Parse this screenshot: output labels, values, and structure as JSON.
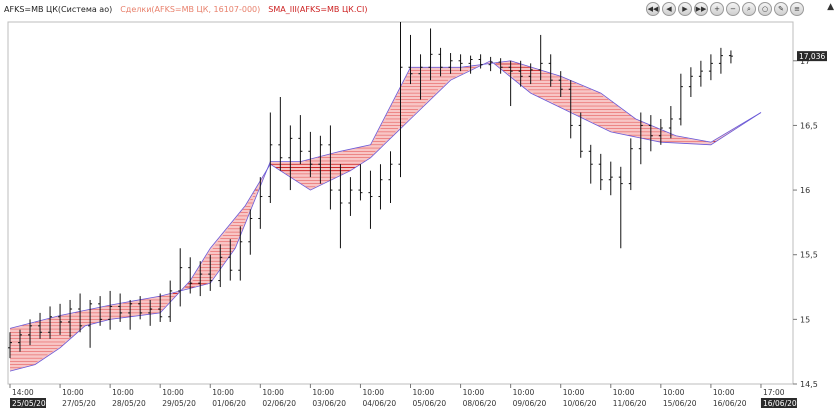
{
  "legend": {
    "instrument": {
      "text": "AFKS=MB ЦК(Система ао)",
      "color": "#222222"
    },
    "trades": {
      "text": "Сделки(AFKS=MB ЦК, 16107-000)",
      "color": "#e8806c"
    },
    "sma": {
      "text": "SMA_III(AFKS=MB ЦК.CI)",
      "color": "#cc1f1f"
    }
  },
  "toolbar": {
    "buttons": [
      {
        "id": "first",
        "icon": "double-left-icon",
        "glyph": "◀◀"
      },
      {
        "id": "prev",
        "icon": "left-icon",
        "glyph": "◀"
      },
      {
        "id": "next",
        "icon": "right-icon",
        "glyph": "▶"
      },
      {
        "id": "last",
        "icon": "double-right-icon",
        "glyph": "▶▶"
      },
      {
        "id": "zoom-in",
        "icon": "plus-icon",
        "glyph": "+"
      },
      {
        "id": "zoom-out",
        "icon": "minus-icon",
        "glyph": "−"
      },
      {
        "id": "zoom-fit",
        "icon": "magnifier-icon",
        "glyph": "⌕"
      },
      {
        "id": "reset",
        "icon": "reset-icon",
        "glyph": "○"
      },
      {
        "id": "edit",
        "icon": "pencil-icon",
        "glyph": "✎"
      },
      {
        "id": "settings",
        "icon": "gear-icon",
        "glyph": "≡"
      }
    ],
    "collapse_icon": "chevron-up-icon",
    "collapse_glyph": "▲"
  },
  "colors": {
    "candle": "#111111",
    "band_fill": "#f8c6c6",
    "band_hatch": "#e24848",
    "band_dense": "#c81010",
    "band_edge": "#6a5ad8",
    "grid": "#e6e6e6",
    "price_tag_bg": "#2a2a2a",
    "price_tag_fg": "#ffffff"
  },
  "chart_data": {
    "type": "line",
    "title": "",
    "xlabel": "",
    "ylabel": "",
    "ylim": [
      14.5,
      17.3
    ],
    "y_ticks": [
      "14,5",
      "15",
      "15,5",
      "16",
      "16,5",
      "17"
    ],
    "y_tick_values": [
      14.5,
      15,
      15.5,
      16,
      16.5,
      17
    ],
    "grid": false,
    "last_price": {
      "value": 17.036,
      "label": "17,036"
    },
    "x_labels": [
      {
        "top": "14:00",
        "bottom": "25/05/20",
        "highlight": true,
        "idx": 0
      },
      {
        "top": "10:00",
        "bottom": "27/05/20",
        "highlight": false,
        "idx": 10
      },
      {
        "top": "10:00",
        "bottom": "28/05/20",
        "highlight": false,
        "idx": 20
      },
      {
        "top": "10:00",
        "bottom": "29/05/20",
        "highlight": false,
        "idx": 30
      },
      {
        "top": "10:00",
        "bottom": "01/06/20",
        "highlight": false,
        "idx": 40
      },
      {
        "top": "10:00",
        "bottom": "02/06/20",
        "highlight": false,
        "idx": 50
      },
      {
        "top": "10:00",
        "bottom": "03/06/20",
        "highlight": false,
        "idx": 60
      },
      {
        "top": "10:00",
        "bottom": "04/06/20",
        "highlight": false,
        "idx": 70
      },
      {
        "top": "10:00",
        "bottom": "05/06/20",
        "highlight": false,
        "idx": 80
      },
      {
        "top": "10:00",
        "bottom": "08/06/20",
        "highlight": false,
        "idx": 90
      },
      {
        "top": "10:00",
        "bottom": "09/06/20",
        "highlight": false,
        "idx": 100
      },
      {
        "top": "10:00",
        "bottom": "10/06/20",
        "highlight": false,
        "idx": 110
      },
      {
        "top": "10:00",
        "bottom": "11/06/20",
        "highlight": false,
        "idx": 120
      },
      {
        "top": "10:00",
        "bottom": "15/06/20",
        "highlight": false,
        "idx": 130
      },
      {
        "top": "10:00",
        "bottom": "16/06/20",
        "highlight": false,
        "idx": 140
      },
      {
        "top": "17:00",
        "bottom": "16/06/20",
        "highlight": true,
        "idx": 150
      }
    ],
    "band": {
      "upper": [
        [
          0,
          14.93
        ],
        [
          10,
          15.03
        ],
        [
          20,
          15.11
        ],
        [
          30,
          15.18
        ],
        [
          40,
          15.28
        ],
        [
          45,
          15.55
        ],
        [
          52,
          16.22
        ],
        [
          58,
          16.22
        ],
        [
          66,
          16.3
        ],
        [
          72,
          16.35
        ],
        [
          80,
          16.95
        ],
        [
          90,
          16.95
        ],
        [
          100,
          17.0
        ],
        [
          110,
          16.88
        ],
        [
          118,
          16.75
        ],
        [
          125,
          16.55
        ],
        [
          133,
          16.42
        ],
        [
          140,
          16.37
        ],
        [
          150,
          16.6
        ]
      ],
      "lower": [
        [
          0,
          14.6
        ],
        [
          5,
          14.65
        ],
        [
          10,
          14.78
        ],
        [
          15,
          14.95
        ],
        [
          20,
          15.0
        ],
        [
          30,
          15.05
        ],
        [
          36,
          15.3
        ],
        [
          40,
          15.55
        ],
        [
          47,
          15.88
        ],
        [
          52,
          16.2
        ],
        [
          60,
          16.0
        ],
        [
          68,
          16.15
        ],
        [
          72,
          16.25
        ],
        [
          80,
          16.55
        ],
        [
          88,
          16.85
        ],
        [
          96,
          17.0
        ],
        [
          104,
          16.75
        ],
        [
          112,
          16.6
        ],
        [
          120,
          16.45
        ],
        [
          130,
          16.37
        ],
        [
          140,
          16.35
        ],
        [
          150,
          16.6
        ]
      ]
    },
    "series": [
      {
        "name": "",
        "candles": [
          [
            0,
            14.78,
            14.9,
            14.7,
            14.82
          ],
          [
            2,
            14.82,
            14.92,
            14.75,
            14.88
          ],
          [
            4,
            14.88,
            15.0,
            14.8,
            14.95
          ],
          [
            6,
            14.95,
            15.05,
            14.85,
            14.9
          ],
          [
            8,
            14.9,
            15.1,
            14.85,
            15.02
          ],
          [
            10,
            15.02,
            15.12,
            14.88,
            14.98
          ],
          [
            12,
            14.98,
            15.15,
            14.86,
            15.08
          ],
          [
            14,
            15.08,
            15.2,
            14.9,
            14.95
          ],
          [
            16,
            14.95,
            15.15,
            14.78,
            15.12
          ],
          [
            18,
            15.12,
            15.18,
            14.95,
            15.0
          ],
          [
            20,
            15.0,
            15.22,
            14.92,
            15.1
          ],
          [
            22,
            15.1,
            15.2,
            14.98,
            15.05
          ],
          [
            24,
            15.05,
            15.15,
            14.92,
            15.12
          ],
          [
            26,
            15.12,
            15.18,
            15.0,
            15.05
          ],
          [
            28,
            15.05,
            15.15,
            14.95,
            15.08
          ],
          [
            30,
            15.08,
            15.2,
            14.98,
            15.02
          ],
          [
            32,
            15.02,
            15.3,
            14.98,
            15.22
          ],
          [
            34,
            15.22,
            15.55,
            15.1,
            15.4
          ],
          [
            36,
            15.4,
            15.48,
            15.2,
            15.28
          ],
          [
            38,
            15.28,
            15.45,
            15.18,
            15.35
          ],
          [
            40,
            15.35,
            15.5,
            15.22,
            15.3
          ],
          [
            42,
            15.3,
            15.58,
            15.25,
            15.48
          ],
          [
            44,
            15.48,
            15.62,
            15.3,
            15.38
          ],
          [
            46,
            15.38,
            15.72,
            15.3,
            15.6
          ],
          [
            48,
            15.6,
            15.85,
            15.5,
            15.78
          ],
          [
            50,
            15.78,
            16.1,
            15.7,
            15.95
          ],
          [
            52,
            15.95,
            16.6,
            15.9,
            16.35
          ],
          [
            54,
            16.35,
            16.72,
            16.15,
            16.25
          ],
          [
            56,
            16.25,
            16.5,
            16.0,
            16.4
          ],
          [
            58,
            16.4,
            16.58,
            16.2,
            16.3
          ],
          [
            60,
            16.3,
            16.45,
            16.1,
            16.2
          ],
          [
            62,
            16.2,
            16.42,
            16.05,
            16.35
          ],
          [
            64,
            16.35,
            16.5,
            15.85,
            16.0
          ],
          [
            66,
            16.0,
            16.2,
            15.55,
            15.9
          ],
          [
            68,
            15.9,
            16.1,
            15.8,
            16.0
          ],
          [
            70,
            16.0,
            16.2,
            15.92,
            15.98
          ],
          [
            72,
            15.98,
            16.15,
            15.7,
            15.95
          ],
          [
            74,
            15.95,
            16.2,
            15.85,
            16.08
          ],
          [
            76,
            16.08,
            16.3,
            15.9,
            16.2
          ],
          [
            78,
            16.2,
            17.3,
            16.1,
            16.95
          ],
          [
            80,
            16.95,
            17.2,
            16.82,
            16.9
          ],
          [
            82,
            16.9,
            17.05,
            16.7,
            16.95
          ],
          [
            84,
            16.95,
            17.25,
            16.85,
            17.05
          ],
          [
            86,
            17.05,
            17.1,
            16.88,
            16.95
          ],
          [
            88,
            16.95,
            17.06,
            16.9,
            17.0
          ],
          [
            90,
            17.0,
            17.05,
            16.92,
            16.98
          ],
          [
            92,
            16.98,
            17.04,
            16.9,
            17.01
          ],
          [
            94,
            17.01,
            17.05,
            16.94,
            16.97
          ],
          [
            96,
            16.97,
            17.03,
            16.92,
            16.99
          ],
          [
            98,
            16.99,
            17.02,
            16.9,
            16.95
          ],
          [
            100,
            16.95,
            17.0,
            16.65,
            16.92
          ],
          [
            102,
            16.92,
            17.0,
            16.8,
            16.88
          ],
          [
            104,
            16.88,
            16.98,
            16.82,
            16.93
          ],
          [
            106,
            16.93,
            17.2,
            16.85,
            16.98
          ],
          [
            108,
            16.98,
            17.05,
            16.8,
            16.85
          ],
          [
            110,
            16.85,
            16.92,
            16.72,
            16.78
          ],
          [
            112,
            16.78,
            16.85,
            16.4,
            16.5
          ],
          [
            114,
            16.5,
            16.6,
            16.25,
            16.3
          ],
          [
            116,
            16.3,
            16.35,
            16.05,
            16.2
          ],
          [
            118,
            16.2,
            16.28,
            16.0,
            16.08
          ],
          [
            120,
            16.08,
            16.22,
            15.96,
            16.1
          ],
          [
            122,
            16.1,
            16.18,
            15.55,
            16.05
          ],
          [
            124,
            16.05,
            16.4,
            16.0,
            16.32
          ],
          [
            126,
            16.32,
            16.6,
            16.2,
            16.5
          ],
          [
            128,
            16.5,
            16.58,
            16.3,
            16.42
          ],
          [
            130,
            16.42,
            16.55,
            16.35,
            16.48
          ],
          [
            132,
            16.48,
            16.65,
            16.4,
            16.55
          ],
          [
            134,
            16.55,
            16.9,
            16.5,
            16.8
          ],
          [
            136,
            16.8,
            16.95,
            16.72,
            16.88
          ],
          [
            138,
            16.88,
            17.0,
            16.8,
            16.92
          ],
          [
            140,
            16.92,
            17.05,
            16.85,
            16.98
          ],
          [
            142,
            16.98,
            17.1,
            16.9,
            17.04
          ],
          [
            144,
            17.04,
            17.08,
            16.98,
            17.036
          ]
        ]
      }
    ]
  }
}
